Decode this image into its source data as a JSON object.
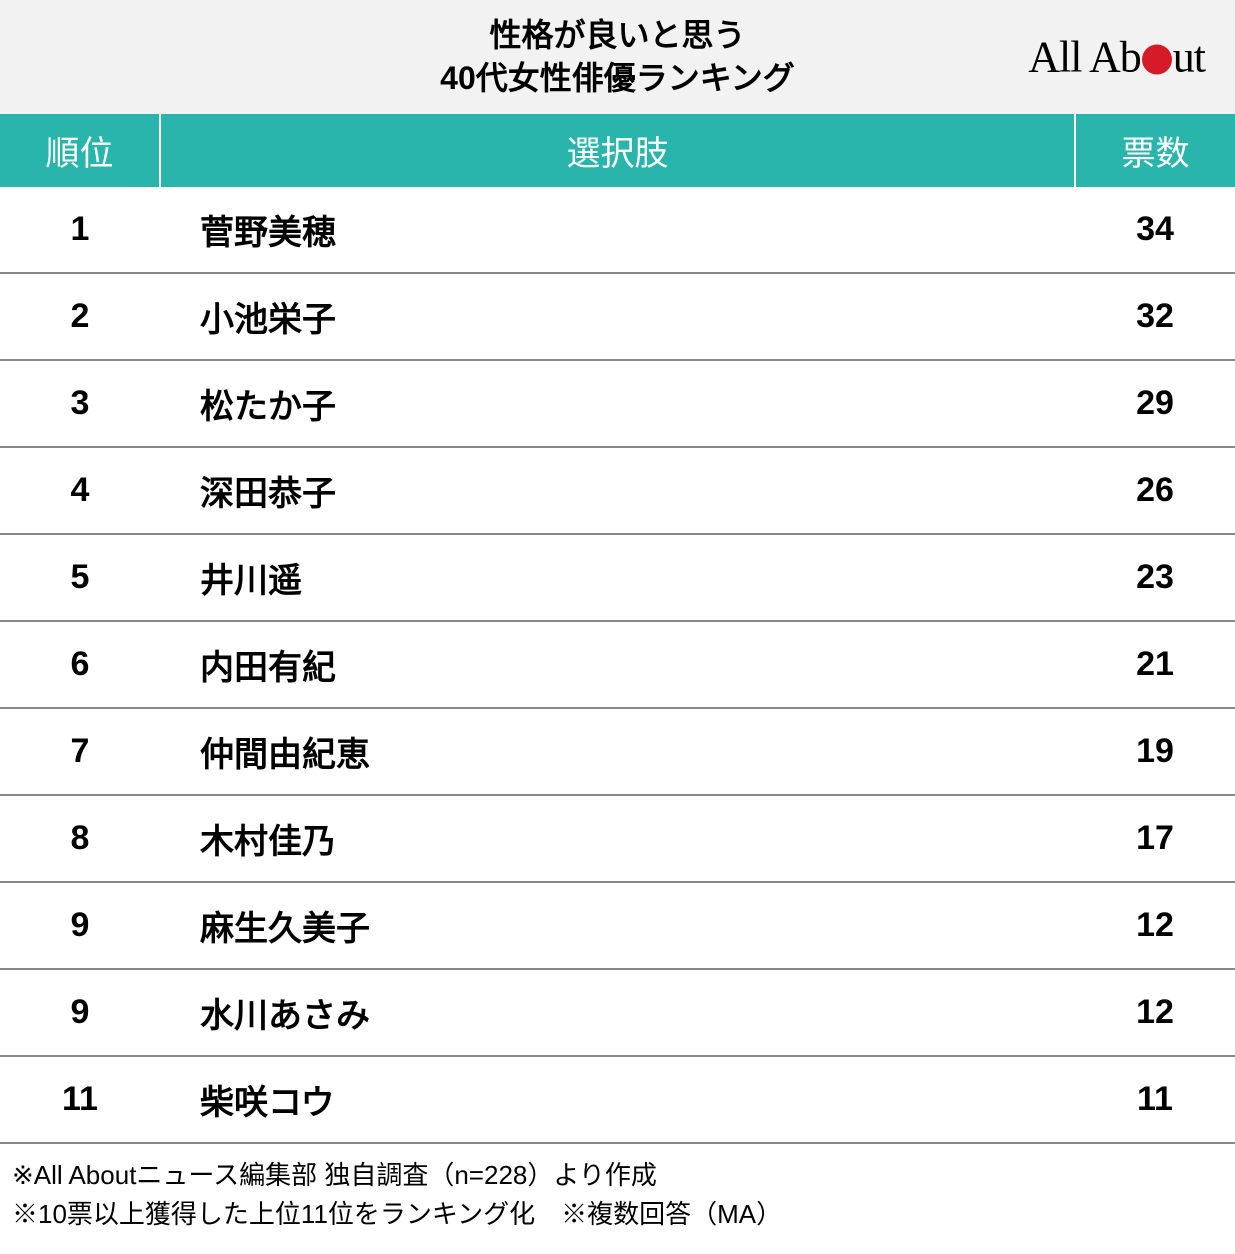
{
  "title": {
    "line1": "性格が良いと思う",
    "line2": "40代女性俳優ランキング",
    "fontsize": 32,
    "color": "#000000",
    "background": "#f2f2f2"
  },
  "logo": {
    "text_before": "All Ab",
    "text_after": "ut",
    "dot_color": "#d51b28",
    "fontsize": 44
  },
  "table": {
    "type": "table",
    "header_background": "#29b5ac",
    "header_text_color": "#ffffff",
    "header_fontsize": 34,
    "body_fontsize": 34,
    "row_border_color": "#888888",
    "columns": [
      {
        "key": "rank",
        "label": "順位",
        "width": 160,
        "align": "center"
      },
      {
        "key": "choice",
        "label": "選択肢",
        "align": "left"
      },
      {
        "key": "votes",
        "label": "票数",
        "width": 160,
        "align": "center"
      }
    ],
    "rows": [
      {
        "rank": "1",
        "choice": "菅野美穂",
        "votes": "34"
      },
      {
        "rank": "2",
        "choice": "小池栄子",
        "votes": "32"
      },
      {
        "rank": "3",
        "choice": "松たか子",
        "votes": "29"
      },
      {
        "rank": "4",
        "choice": "深田恭子",
        "votes": "26"
      },
      {
        "rank": "5",
        "choice": "井川遥",
        "votes": "23"
      },
      {
        "rank": "6",
        "choice": "内田有紀",
        "votes": "21"
      },
      {
        "rank": "7",
        "choice": "仲間由紀恵",
        "votes": "19"
      },
      {
        "rank": "8",
        "choice": "木村佳乃",
        "votes": "17"
      },
      {
        "rank": "9",
        "choice": "麻生久美子",
        "votes": "12"
      },
      {
        "rank": "9",
        "choice": "水川あさみ",
        "votes": "12"
      },
      {
        "rank": "11",
        "choice": "柴咲コウ",
        "votes": "11"
      }
    ]
  },
  "footnotes": {
    "line1": "※All Aboutニュース編集部 独自調査（n=228）より作成",
    "line2": "※10票以上獲得した上位11位をランキング化　※複数回答（MA）",
    "fontsize": 26
  }
}
